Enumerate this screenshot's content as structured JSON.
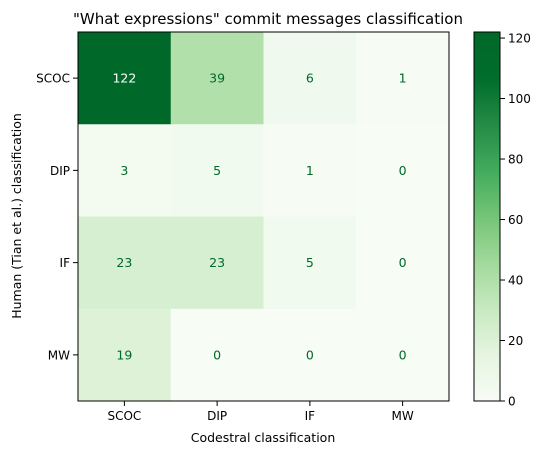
{
  "chart_data": {
    "type": "heatmap",
    "title": "\"What expressions\" commit messages classification",
    "xlabel": "Codestral classification",
    "ylabel": "Human (Tian et al.) classification",
    "x_categories": [
      "SCOC",
      "DIP",
      "IF",
      "MW"
    ],
    "y_categories": [
      "SCOC",
      "DIP",
      "IF",
      "MW"
    ],
    "values": [
      [
        122,
        39,
        6,
        1
      ],
      [
        3,
        5,
        1,
        0
      ],
      [
        23,
        23,
        5,
        0
      ],
      [
        19,
        0,
        0,
        0
      ]
    ],
    "colorbar": {
      "min": 0,
      "max": 122,
      "ticks": [
        0,
        20,
        40,
        60,
        80,
        100,
        120
      ],
      "colormap": "Greens",
      "low_color": "#f7fcf5",
      "high_color": "#00692a"
    },
    "cell_text_color": "#00692a"
  }
}
